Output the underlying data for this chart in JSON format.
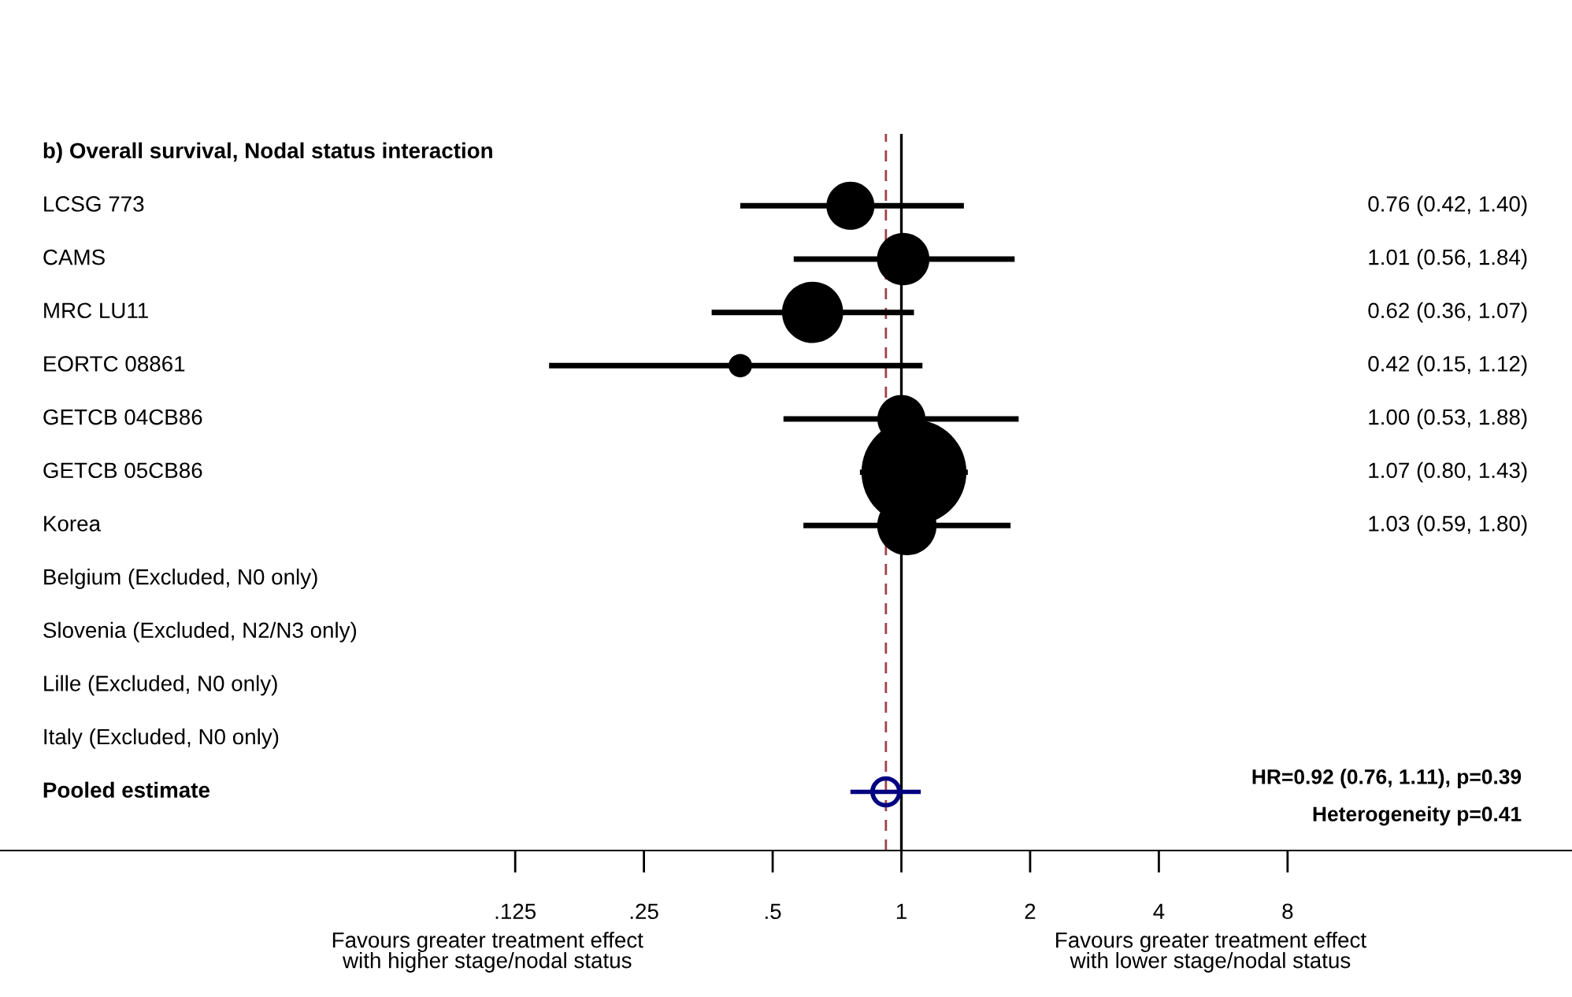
{
  "chart_data": {
    "type": "bubble",
    "title": "b) Overall survival, Nodal status interaction",
    "orientation": "horizontal",
    "log": "x",
    "categories": [
      "LCSG 773",
      "CAMS",
      "MRC LU11",
      "EORTC 08861",
      "GETCB 04CB86",
      "GETCB 05CB86",
      "Korea",
      "Belgium (Excluded, N0 only)",
      "Slovenia (Excluded, N2/N3 only)",
      "Lille (Excluded, N0 only)",
      "Italy (Excluded, N0 only)",
      "Pooled estimate"
    ],
    "series": [
      {
        "color": "#000000",
        "values": [
          0.76,
          1.01,
          0.62,
          0.42,
          1.0,
          1.07,
          1.03,
          null,
          null,
          null,
          null,
          null
        ],
        "errors": [
          [
            0.42,
            1.4
          ],
          [
            0.56,
            1.84
          ],
          [
            0.36,
            1.07
          ],
          [
            0.15,
            1.12
          ],
          [
            0.53,
            1.88
          ],
          [
            0.8,
            1.43
          ],
          [
            0.59,
            1.8
          ],
          null,
          null,
          null,
          null,
          null
        ],
        "sizes": [
          0.21,
          0.25,
          0.34,
          0.05,
          0.21,
          1,
          0.32,
          null,
          null,
          null,
          null,
          null
        ]
      },
      {
        "type": "scatter",
        "color": "#000080",
        "marker": "circle",
        "values": [
          null,
          null,
          null,
          null,
          null,
          null,
          null,
          null,
          null,
          null,
          null,
          0.92
        ],
        "errors": [
          null,
          null,
          null,
          null,
          null,
          null,
          null,
          null,
          null,
          null,
          null,
          [
            0.76,
            1.11
          ]
        ]
      }
    ],
    "xlim": [
      0.0078,
      37
    ],
    "xticks": [
      {
        "value": 0.125,
        "label": ".125"
      },
      {
        "value": 0.25,
        "label": ".25"
      },
      {
        "value": 0.5,
        "label": ".5"
      },
      1,
      2,
      4,
      8
    ],
    "ref_lines": [
      {
        "axis": "x",
        "value": 1,
        "color": "#000000",
        "line_style": "solid"
      },
      {
        "axis": "x",
        "value": 0.92,
        "color": "#a0404a",
        "line_style": "dashed"
      }
    ],
    "annotations": [
      "0.76 (0.42, 1.40)",
      "1.01 (0.56, 1.84)",
      "0.62 (0.36, 1.07)",
      "0.42 (0.15, 1.12)",
      "1.00 (0.53, 1.88)",
      "1.07 (0.80, 1.43)",
      "1.03 (0.59, 1.80)",
      "HR=0.92 (0.76, 1.11), p=0.39",
      "Heterogeneity p=0.41",
      "Favours greater treatment effect\nwith higher stage/nodal status",
      "Favours greater treatment effect\nwith lower stage/nodal status"
    ],
    "grid": false,
    "legend": false
  }
}
